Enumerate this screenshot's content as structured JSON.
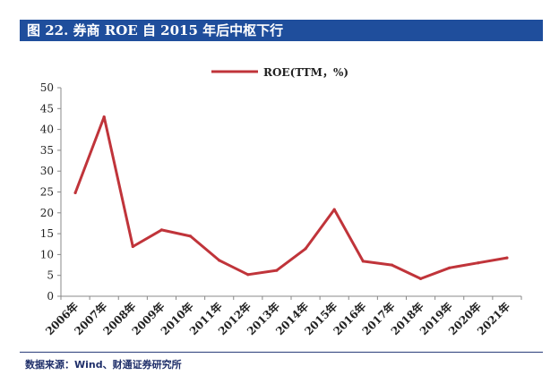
{
  "header": {
    "title": "图 22. 券商 ROE 自 2015 年后中枢下行"
  },
  "footer": {
    "source": "数据来源：Wind、财通证券研究所"
  },
  "colors": {
    "title_bg": "#1f4e9c",
    "line": "#c0343a",
    "axis": "#888888"
  },
  "chart_data": {
    "type": "line",
    "title": "",
    "xlabel": "",
    "ylabel": "",
    "ylim": [
      0,
      50
    ],
    "yticks": [
      0,
      5,
      10,
      15,
      20,
      25,
      30,
      35,
      40,
      45,
      50
    ],
    "grid": false,
    "legend_position": "top-center",
    "categories": [
      "2006年",
      "2007年",
      "2008年",
      "2009年",
      "2010年",
      "2011年",
      "2012年",
      "2013年",
      "2014年",
      "2015年",
      "2016年",
      "2017年",
      "2018年",
      "2019年",
      "2020年",
      "2021年"
    ],
    "series": [
      {
        "name": "ROE(TTM，%)",
        "values": [
          24.8,
          43.0,
          11.9,
          15.9,
          14.4,
          8.6,
          5.2,
          6.2,
          11.4,
          20.8,
          8.4,
          7.5,
          4.2,
          6.8,
          8.0,
          9.2
        ]
      }
    ]
  }
}
